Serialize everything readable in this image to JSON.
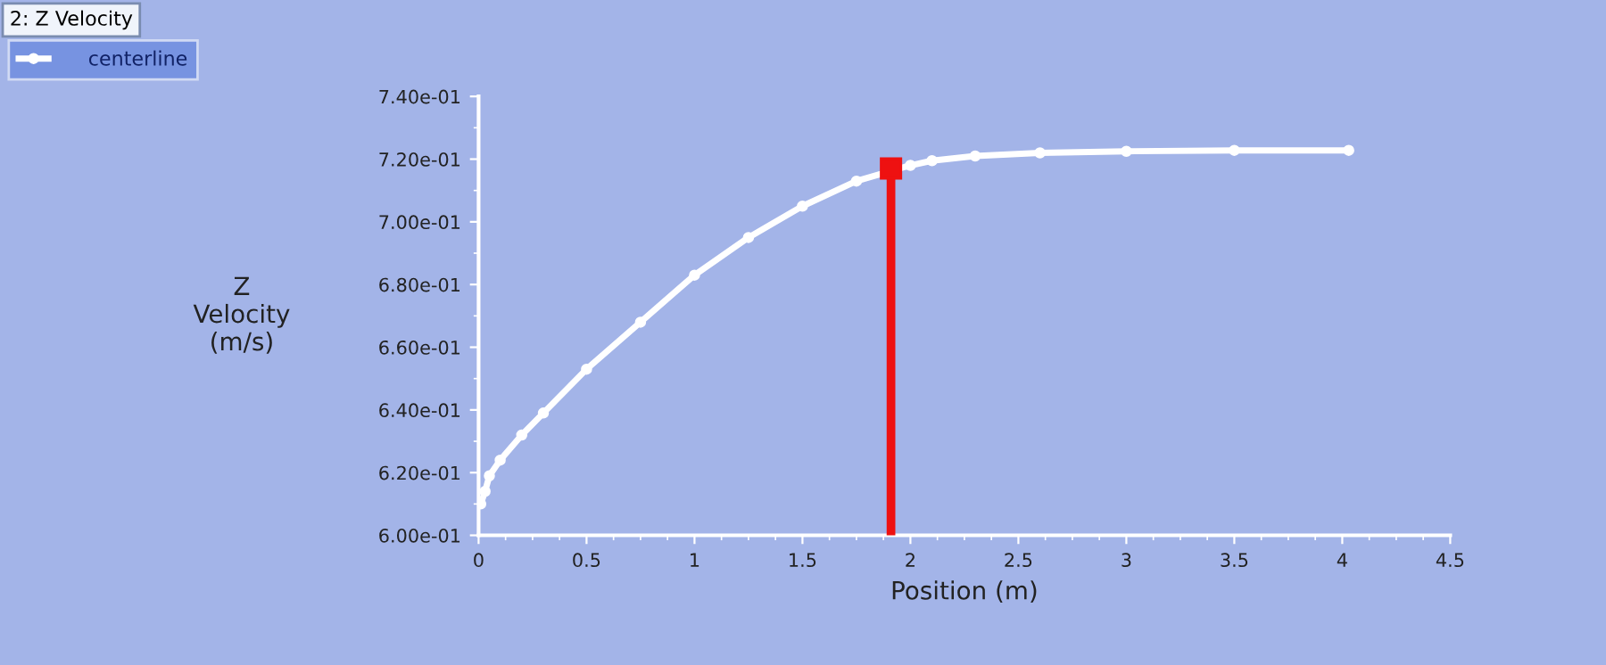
{
  "chart_data": {
    "type": "line",
    "title": "2: Z Velocity",
    "xlabel": "Position (m)",
    "ylabel": "Z\nVelocity\n(m/s)",
    "x": [
      0.01,
      0.03,
      0.05,
      0.1,
      0.2,
      0.3,
      0.5,
      0.75,
      1.0,
      1.25,
      1.5,
      1.75,
      2.0,
      2.1,
      2.3,
      2.6,
      3.0,
      3.5,
      4.03
    ],
    "series": [
      {
        "name": "centerline",
        "color": "#ffffff",
        "marker": "circle",
        "values": [
          0.61,
          0.614,
          0.619,
          0.624,
          0.632,
          0.639,
          0.653,
          0.668,
          0.683,
          0.695,
          0.705,
          0.713,
          0.718,
          0.7195,
          0.721,
          0.722,
          0.7225,
          0.7228,
          0.7228
        ]
      },
      {
        "type": "lollipop",
        "color": "#ee1111",
        "marker": "square",
        "x": [
          1.91
        ],
        "values": [
          0.717
        ]
      }
    ],
    "xlim": [
      0,
      4.5
    ],
    "xticks": [
      0,
      0.5,
      1,
      1.5,
      2,
      2.5,
      3,
      3.5,
      4,
      4.5
    ],
    "ylim": [
      0.6,
      0.74
    ],
    "yticks": [
      {
        "value": 0.6,
        "label": "6.00e-01"
      },
      {
        "value": 0.62,
        "label": "6.20e-01"
      },
      {
        "value": 0.64,
        "label": "6.40e-01"
      },
      {
        "value": 0.66,
        "label": "6.60e-01"
      },
      {
        "value": 0.68,
        "label": "6.80e-01"
      },
      {
        "value": 0.7,
        "label": "7.00e-01"
      },
      {
        "value": 0.72,
        "label": "7.20e-01"
      },
      {
        "value": 0.74,
        "label": "7.40e-01"
      }
    ],
    "grid": false,
    "legend": "top left"
  }
}
